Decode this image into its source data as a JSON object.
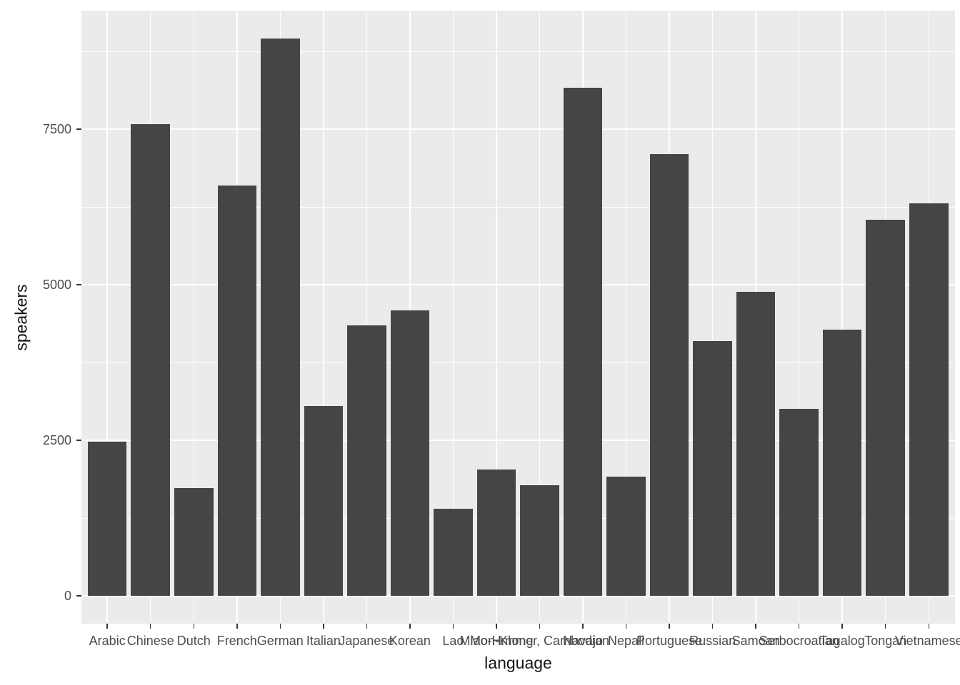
{
  "chart_data": {
    "type": "bar",
    "title": "",
    "xlabel": "language",
    "ylabel": "speakers",
    "categories": [
      "Arabic",
      "Chinese",
      "Dutch",
      "French",
      "German",
      "Italian",
      "Japanese",
      "Korean",
      "Lao",
      "Miao-Hmong",
      "Mon-Khmer, Cambodian",
      "Navajo",
      "Nepali",
      "Portuguese",
      "Russian",
      "Samoan",
      "Serbocroatian",
      "Tagalog",
      "Tongan",
      "Vietnamese"
    ],
    "values": [
      2480,
      7580,
      1730,
      6600,
      8960,
      3050,
      4350,
      4590,
      1400,
      2030,
      1780,
      8170,
      1920,
      7100,
      4100,
      4890,
      3000,
      4280,
      6050,
      6310
    ],
    "ylim": [
      0,
      9405
    ],
    "y_major_breaks": [
      0,
      2500,
      5000,
      7500
    ],
    "y_major_labels": [
      "0",
      "2500",
      "5000",
      "7500"
    ],
    "y_minor_breaks": [
      1250,
      3750,
      6250,
      8750
    ],
    "grid": "on",
    "legend": "none",
    "colors": {
      "bar_fill": "#454545",
      "panel_background": "#EBEBEB",
      "gridline": "#FFFFFF",
      "tick_mark": "#333333",
      "tick_label": "#4D4D4D",
      "axis_title": "#141414",
      "figure_background": "#FFFFFF"
    }
  }
}
